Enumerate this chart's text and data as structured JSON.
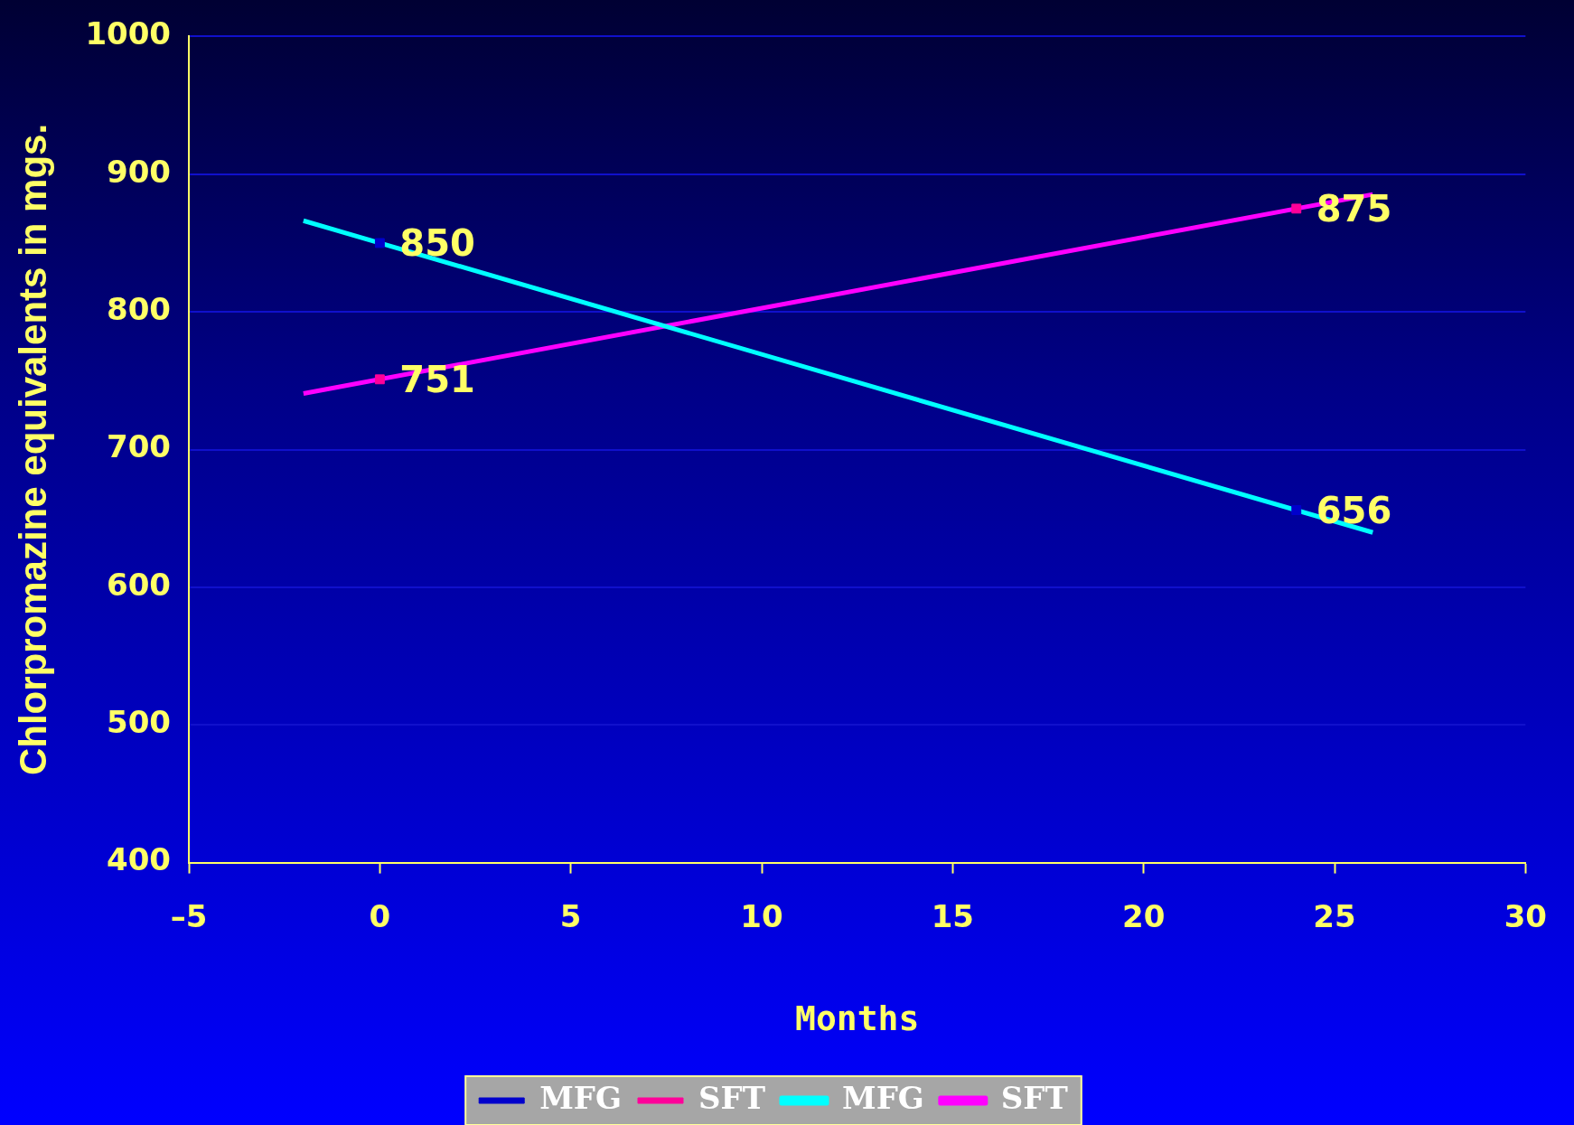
{
  "chart_data": {
    "type": "scatter",
    "xlabel": "Months",
    "ylabel": "Chlorpromazine equivalents in mgs.",
    "xlim": [
      -5,
      30
    ],
    "xticks": [
      {
        "value": -5,
        "label": "–5"
      },
      0,
      5,
      10,
      15,
      20,
      25,
      30
    ],
    "ylim": [
      400,
      1000
    ],
    "yticks": [
      400,
      500,
      600,
      700,
      800,
      900,
      1000
    ],
    "grid": "y",
    "legend": "bottom",
    "series": [
      {
        "name": "MFG",
        "color": "#0000cc",
        "marker": "square",
        "x": [
          0,
          24
        ],
        "values": [
          850,
          656
        ],
        "value_labels": [
          "850",
          "656"
        ]
      },
      {
        "name": "SFT",
        "color": "#ff0099",
        "marker": "square",
        "x": [
          0,
          24
        ],
        "values": [
          751,
          875
        ],
        "value_labels": [
          "751",
          "875"
        ]
      },
      {
        "name": "MFG",
        "type": "line",
        "color": "#00ffff",
        "marker": "none",
        "x": [
          -2,
          26
        ],
        "values": [
          866.2,
          639.8
        ]
      },
      {
        "name": "SFT",
        "type": "line",
        "color": "#ff00ff",
        "marker": "none",
        "x": [
          -2,
          26
        ],
        "values": [
          740.7,
          885.3
        ]
      }
    ]
  }
}
